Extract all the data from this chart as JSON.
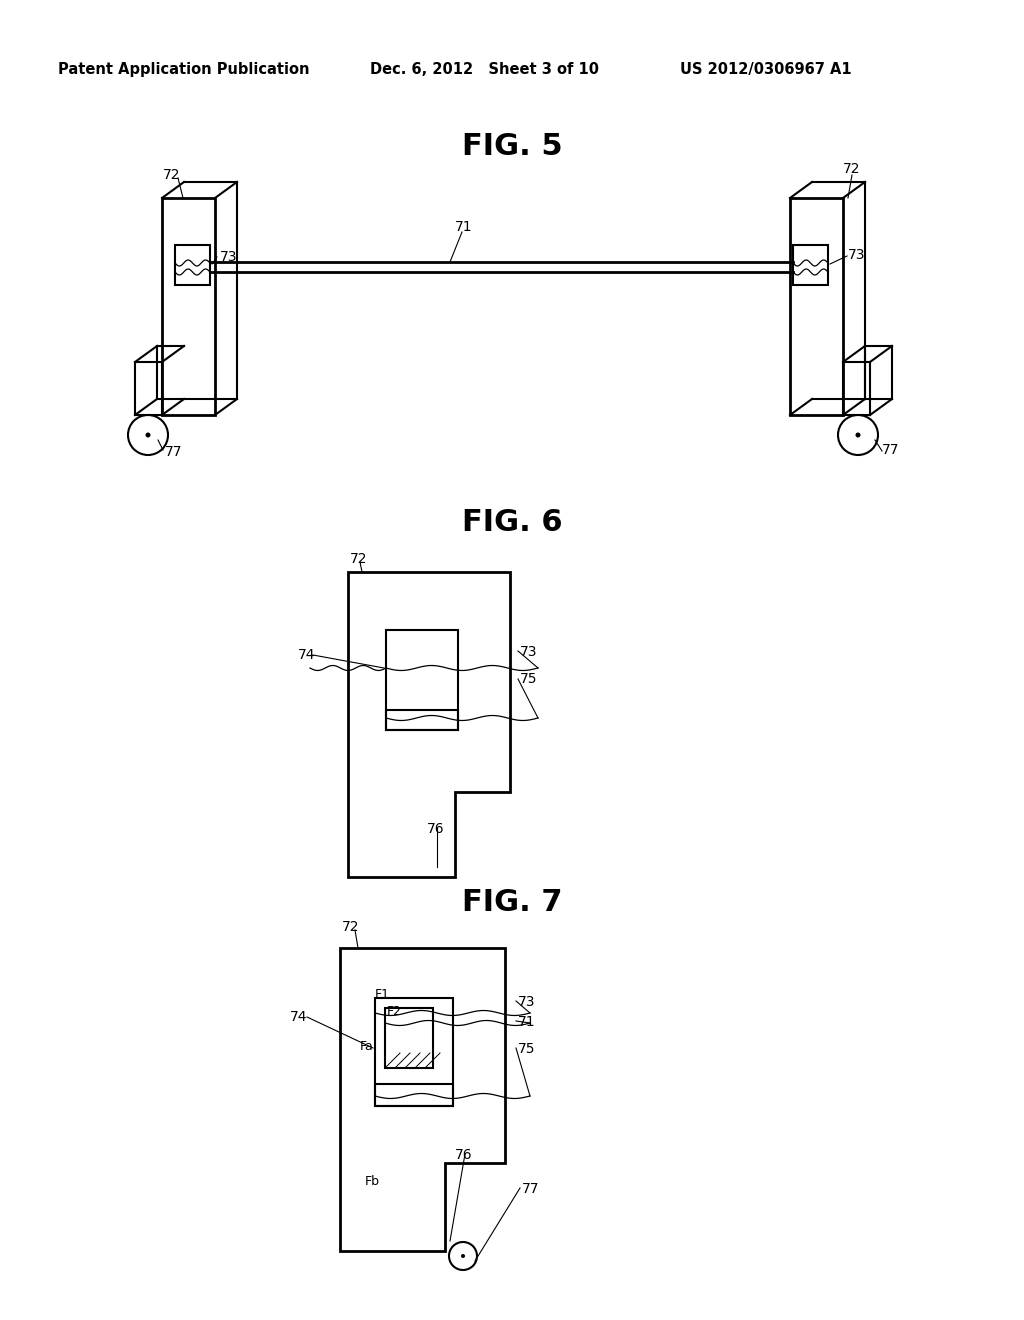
{
  "bg_color": "#ffffff",
  "header_left": "Patent Application Publication",
  "header_mid": "Dec. 6, 2012   Sheet 3 of 10",
  "header_right": "US 2012/0306967 A1",
  "fig5_title": "FIG. 5",
  "fig6_title": "FIG. 6",
  "fig7_title": "FIG. 7"
}
